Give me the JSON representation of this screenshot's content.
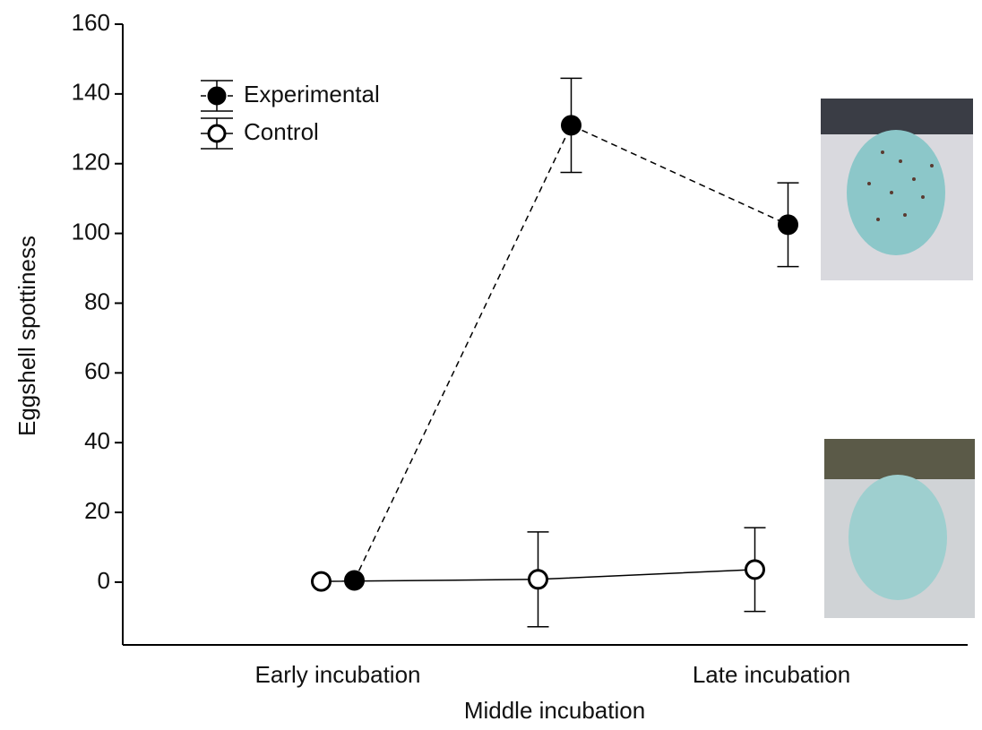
{
  "chart_data": {
    "type": "line",
    "y_label": "Eggshell spottiness",
    "categories": [
      "Early incubation",
      "Middle incubation",
      "Late incubation"
    ],
    "series": [
      {
        "name": "Experimental",
        "color": "#000000",
        "dashed": true,
        "marker": "filled",
        "values": [
          0.5,
          131,
          102.5
        ],
        "errors": [
          0,
          13.5,
          12
        ]
      },
      {
        "name": "Control",
        "color": "#000000",
        "dashed": false,
        "marker": "open",
        "values": [
          0.2,
          0.8,
          3.6
        ],
        "errors": [
          0,
          13.6,
          12
        ]
      }
    ],
    "ylim": [
      -18,
      160
    ],
    "yticks": [
      0,
      20,
      40,
      60,
      80,
      100,
      120,
      140,
      160
    ],
    "legend": "upper left"
  }
}
